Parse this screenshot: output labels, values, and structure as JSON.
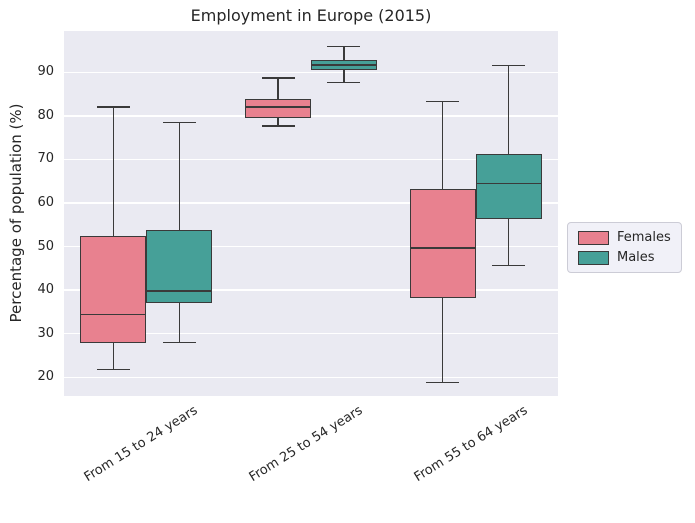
{
  "colors": {
    "figure_background": "#ffffff",
    "axes_background": "#eaeaf2",
    "grid": "#ffffff",
    "box_edge": "#3a3a3a",
    "text": "#262626",
    "females": "#e8818f",
    "males": "#46a098",
    "legend_background": "#f1f1f8",
    "legend_border": "#ccccd6"
  },
  "chart_data": {
    "type": "boxplot",
    "title": "Employment in Europe (2015)",
    "ylabel": "Percentage of population (%)",
    "xlabel": "",
    "categories": [
      "From 15 to 24 years",
      "From 25 to 54 years",
      "From 55 to 64 years"
    ],
    "yticks": [
      20,
      30,
      40,
      50,
      60,
      70,
      80,
      90
    ],
    "ylim": [
      15.7,
      99.5
    ],
    "grid": true,
    "legend": {
      "position": "center-right-outside",
      "entries": [
        "Females",
        "Males"
      ]
    },
    "series": [
      {
        "name": "Females",
        "color": "#e8818f",
        "boxes": [
          {
            "category": "From 15 to 24 years",
            "whislo": 21.8,
            "q1": 27.8,
            "med": 34.4,
            "q3": 52.4,
            "whishi": 82.0
          },
          {
            "category": "From 25 to 54 years",
            "whislo": 77.7,
            "q1": 79.5,
            "med": 82.0,
            "q3": 84.0,
            "whishi": 88.7
          },
          {
            "category": "From 55 to 64 years",
            "whislo": 18.8,
            "q1": 38.3,
            "med": 49.6,
            "q3": 63.3,
            "whishi": 83.3
          }
        ]
      },
      {
        "name": "Males",
        "color": "#46a098",
        "boxes": [
          {
            "category": "From 15 to 24 years",
            "whislo": 28.0,
            "q1": 37.1,
            "med": 39.8,
            "q3": 53.8,
            "whishi": 78.5
          },
          {
            "category": "From 25 to 54 years",
            "whislo": 87.7,
            "q1": 90.5,
            "med": 91.6,
            "q3": 92.9,
            "whishi": 95.9
          },
          {
            "category": "From 55 to 64 years",
            "whislo": 45.7,
            "q1": 56.3,
            "med": 64.4,
            "q3": 71.2,
            "whishi": 91.6
          }
        ]
      }
    ]
  }
}
